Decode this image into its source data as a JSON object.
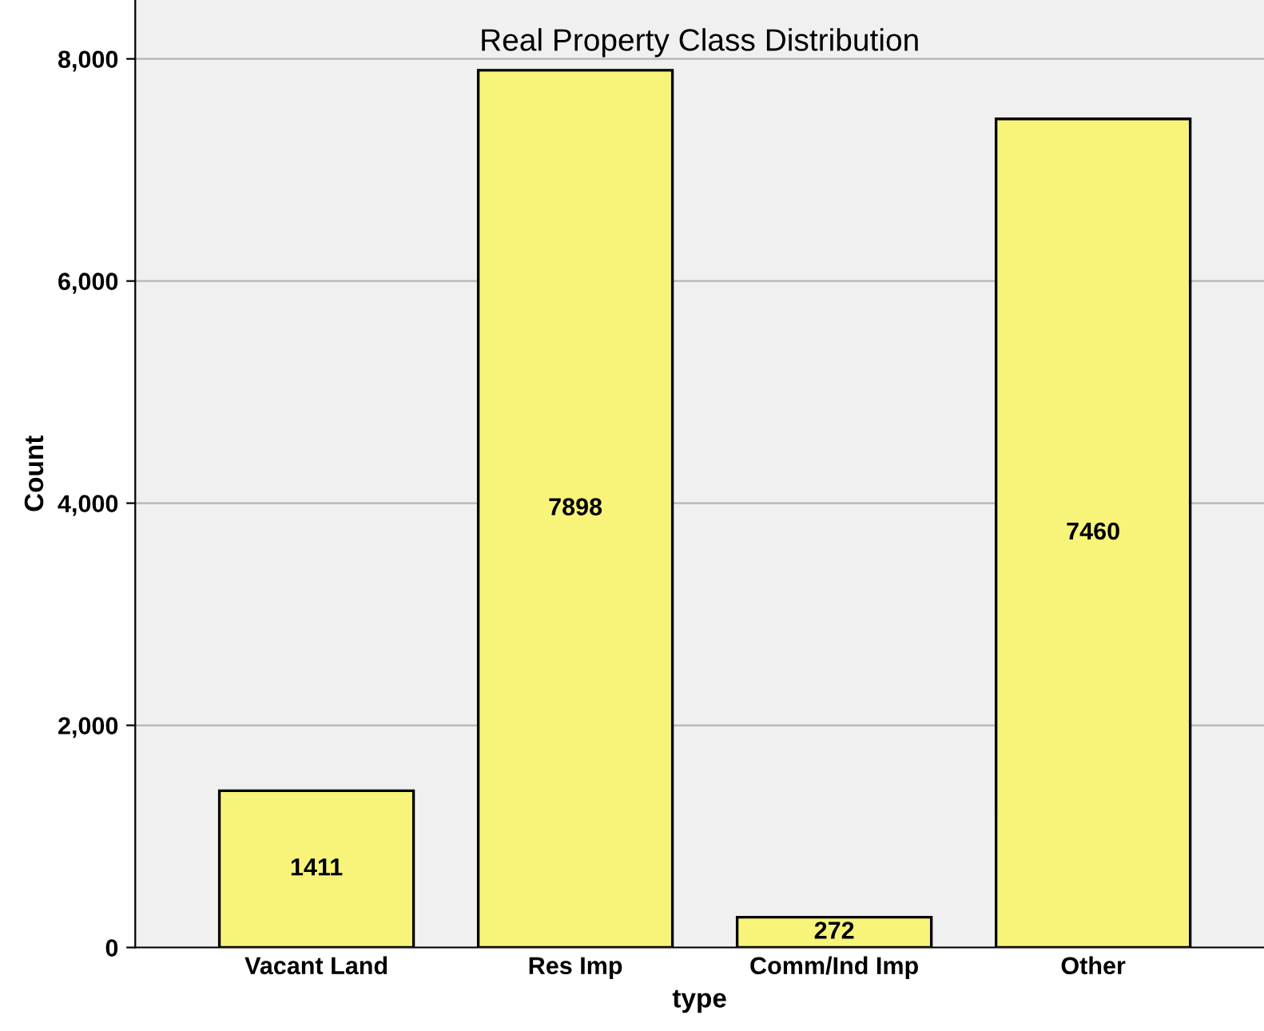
{
  "chart_data": {
    "type": "bar",
    "title": "Real Property Class Distribution",
    "xlabel": "type",
    "ylabel": "Count",
    "categories": [
      "Vacant Land",
      "Res Imp",
      "Comm/Ind Imp",
      "Other"
    ],
    "values": [
      1411,
      7898,
      272,
      7460
    ],
    "color": "#f8f47a",
    "ylim": [
      0,
      8530
    ],
    "yticks": [
      {
        "value": 0,
        "label": "0"
      },
      {
        "value": 2000,
        "label": "2,000"
      },
      {
        "value": 4000,
        "label": "4,000"
      },
      {
        "value": 6000,
        "label": "6,000"
      },
      {
        "value": 8000,
        "label": "8,000"
      }
    ],
    "grid": "y",
    "data_labels": true
  }
}
